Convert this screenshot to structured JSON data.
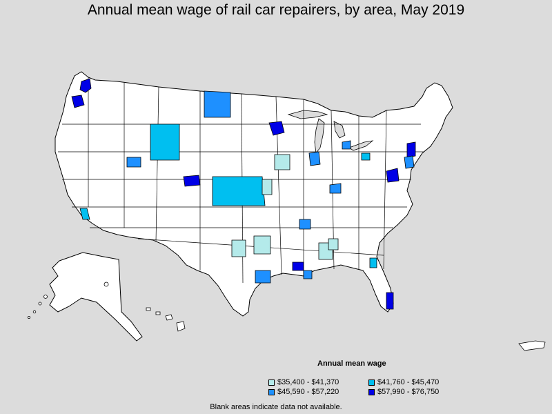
{
  "title": "Annual mean wage of rail car repairers, by area, May 2019",
  "legend": {
    "title": "Annual mean wage",
    "items": [
      {
        "label": "$35,400 - $41,370",
        "color": "#b4eaea"
      },
      {
        "label": "$41,760 - $45,470",
        "color": "#00bff0"
      },
      {
        "label": "$45,590 - $57,220",
        "color": "#1e90ff"
      },
      {
        "label": "$57,990 - $76,750",
        "color": "#0000e6"
      }
    ]
  },
  "note": "Blank areas indicate data not available.",
  "colors": {
    "background": "#dcdcdc",
    "land": "#ffffff",
    "border": "#000000"
  }
}
